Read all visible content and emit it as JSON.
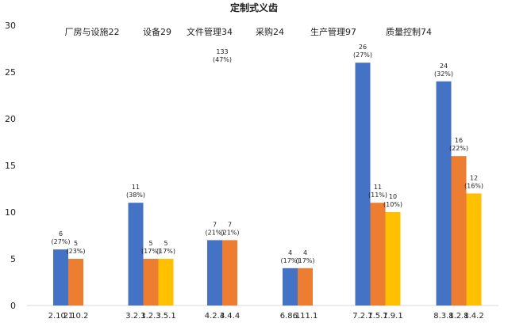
{
  "chart_data": {
    "type": "bar",
    "title": "定制式义齿",
    "xlabel": "",
    "ylabel": "",
    "ylim": [
      0,
      30
    ],
    "yticks": [
      0,
      5,
      10,
      15,
      20,
      25,
      30
    ],
    "grid": false,
    "legend": "none",
    "colors": {
      "blue": "#4472C4",
      "orange": "#ED7D31",
      "yellow": "#FFC000"
    },
    "groups": [
      {
        "label": "厂房与设施22",
        "bars": [
          {
            "category": "2.10.1",
            "value": 6,
            "label_value": "6",
            "label_pct": "(27%)",
            "color": "blue"
          },
          {
            "category": "2.10.2",
            "value": 5,
            "label_value": "5",
            "label_pct": "(23%)",
            "color": "orange"
          }
        ]
      },
      {
        "label": "设备29",
        "bars": [
          {
            "category": "3.2.1",
            "value": 11,
            "label_value": "11",
            "label_pct": "(38%)",
            "color": "blue"
          },
          {
            "category": "3.2.3",
            "value": 5,
            "label_value": "5",
            "label_pct": "(17%)",
            "color": "orange"
          },
          {
            "category": "3.5.1",
            "value": 5,
            "label_value": "5",
            "label_pct": "(17%)",
            "color": "yellow"
          }
        ]
      },
      {
        "label": "文件管理34",
        "extra_label": {
          "value": "133",
          "pct": "(47%)"
        },
        "bars": [
          {
            "category": "4.2.3",
            "value": 7,
            "label_value": "7",
            "label_pct": "(21%)",
            "color": "blue"
          },
          {
            "category": "4.4.4",
            "value": 7,
            "label_value": "7",
            "label_pct": "(21%)",
            "color": "orange"
          }
        ]
      },
      {
        "label": "采购24",
        "bars": [
          {
            "category": "6.8.1",
            "value": 4,
            "label_value": "4",
            "label_pct": "(17%)",
            "color": "blue"
          },
          {
            "category": "6.11.1",
            "value": 4,
            "label_value": "4",
            "label_pct": "(17%)",
            "color": "orange"
          }
        ]
      },
      {
        "label": "生产管理97",
        "bars": [
          {
            "category": "7.2.1",
            "value": 26,
            "label_value": "26",
            "label_pct": "(27%)",
            "color": "blue"
          },
          {
            "category": "7.5.1",
            "value": 11,
            "label_value": "11",
            "label_pct": "(11%)",
            "color": "orange"
          },
          {
            "category": "7.9.1",
            "value": 10,
            "label_value": "10",
            "label_pct": "(10%)",
            "color": "yellow"
          }
        ]
      },
      {
        "label": "质量控制74",
        "bars": [
          {
            "category": "8.3.1",
            "value": 24,
            "label_value": "24",
            "label_pct": "(32%)",
            "color": "blue"
          },
          {
            "category": "8.2.1",
            "value": 16,
            "label_value": "16",
            "label_pct": "(22%)",
            "color": "orange"
          },
          {
            "category": "8.4.2",
            "value": 12,
            "label_value": "12",
            "label_pct": "(16%)",
            "color": "yellow"
          }
        ]
      }
    ]
  }
}
